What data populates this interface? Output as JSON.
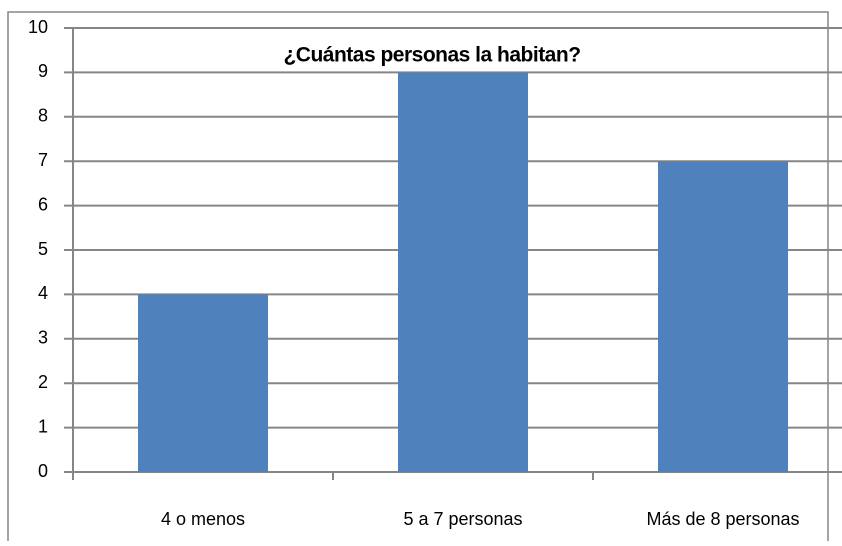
{
  "chart_data": {
    "type": "bar",
    "title": "¿Cuántas personas la habitan?",
    "categories": [
      "4 o menos",
      "5 a 7 personas",
      "Más de 8 personas"
    ],
    "values": [
      4,
      9,
      7
    ],
    "color": "#4f81bd",
    "ylim": [
      0,
      10
    ],
    "yticks": [
      0,
      1,
      2,
      3,
      4,
      5,
      6,
      7,
      8,
      9,
      10
    ],
    "grid": true
  }
}
